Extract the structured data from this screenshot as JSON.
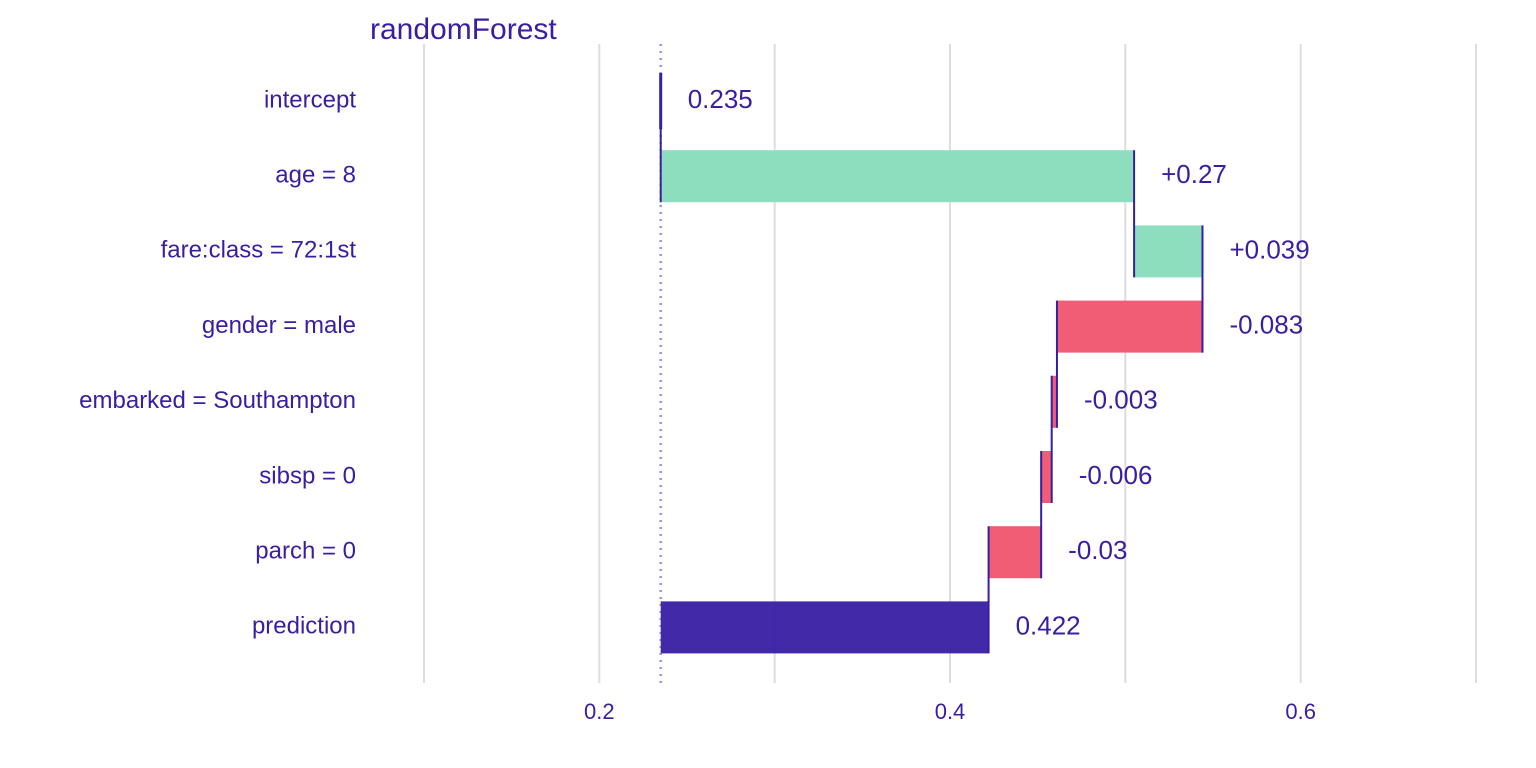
{
  "chart_data": {
    "type": "bar",
    "title": "randomForest",
    "xlabel": "",
    "ylabel": "",
    "xlim": [
      0.1,
      0.7
    ],
    "grid": true,
    "legend": "none",
    "x_ticks": [
      {
        "value": 0.2,
        "label": "0.2"
      },
      {
        "value": 0.4,
        "label": "0.4"
      },
      {
        "value": 0.6,
        "label": "0.6"
      }
    ],
    "minor_gridlines": [
      0.1,
      0.3,
      0.5,
      0.7
    ],
    "baseline": 0.235,
    "categories": [
      "intercept",
      "age = 8",
      "fare:class = 72:1st",
      "gender = male",
      "embarked = Southampton",
      "sibsp = 0",
      "parch = 0",
      "prediction"
    ],
    "bars": [
      {
        "category": "intercept",
        "start": 0.235,
        "end": 0.235,
        "kind": "intercept",
        "label": "0.235"
      },
      {
        "category": "age = 8",
        "start": 0.235,
        "end": 0.505,
        "kind": "positive",
        "label": "+0.27"
      },
      {
        "category": "fare:class = 72:1st",
        "start": 0.505,
        "end": 0.544,
        "kind": "positive",
        "label": "+0.039"
      },
      {
        "category": "gender = male",
        "start": 0.544,
        "end": 0.461,
        "kind": "negative",
        "label": "-0.083"
      },
      {
        "category": "embarked = Southampton",
        "start": 0.461,
        "end": 0.458,
        "kind": "negative",
        "label": "-0.003"
      },
      {
        "category": "sibsp = 0",
        "start": 0.458,
        "end": 0.452,
        "kind": "negative",
        "label": "-0.006"
      },
      {
        "category": "parch = 0",
        "start": 0.452,
        "end": 0.422,
        "kind": "negative",
        "label": "-0.03"
      },
      {
        "category": "prediction",
        "start": 0.235,
        "end": 0.422,
        "kind": "prediction",
        "label": "0.422"
      }
    ],
    "colors": {
      "text": "#371ea3",
      "positive": "#8bdcbe",
      "negative": "#f05a71",
      "prediction": "#371ea3",
      "grid": "#dddddd",
      "baseline_line": "#9e92e0"
    }
  }
}
